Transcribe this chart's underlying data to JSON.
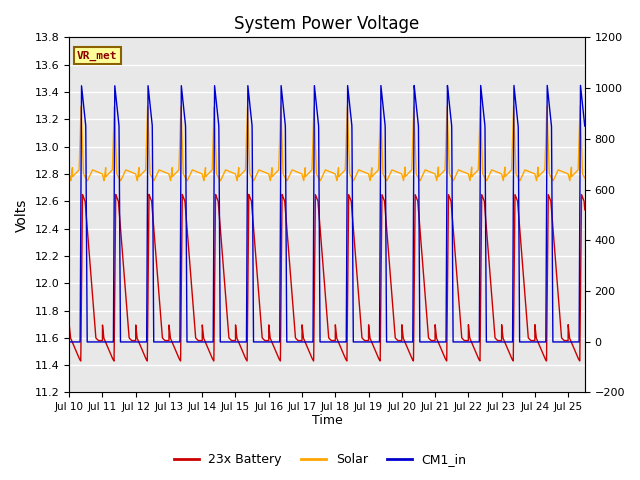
{
  "title": "System Power Voltage",
  "xlabel": "Time",
  "ylabel": "Volts",
  "left_ylim": [
    11.2,
    13.8
  ],
  "right_ylim": [
    -200,
    1200
  ],
  "left_yticks": [
    11.2,
    11.4,
    11.6,
    11.8,
    12.0,
    12.2,
    12.4,
    12.6,
    12.8,
    13.0,
    13.2,
    13.4,
    13.6,
    13.8
  ],
  "right_yticks": [
    -200,
    0,
    200,
    400,
    600,
    800,
    1000,
    1200
  ],
  "xtick_labels": [
    "Jul 10",
    "Jul 11",
    "Jul 12",
    "Jul 13",
    "Jul 14",
    "Jul 15",
    "Jul 16",
    "Jul 17",
    "Jul 18",
    "Jul 19",
    "Jul 20",
    "Jul 21",
    "Jul 22",
    "Jul 23",
    "Jul 24",
    "Jul 25"
  ],
  "annotation_text": "VR_met",
  "annotation_color": "#8B0000",
  "annotation_bg": "#FFFF99",
  "annotation_border": "#8B6000",
  "legend_entries": [
    "23x Battery",
    "Solar",
    "CM1_in"
  ],
  "line_colors": [
    "#CC0000",
    "#FFA500",
    "#0000CC"
  ],
  "background_color": "#E8E8E8",
  "grid_color": "#FFFFFF",
  "n_cycles": 15,
  "total_days": 15.5
}
